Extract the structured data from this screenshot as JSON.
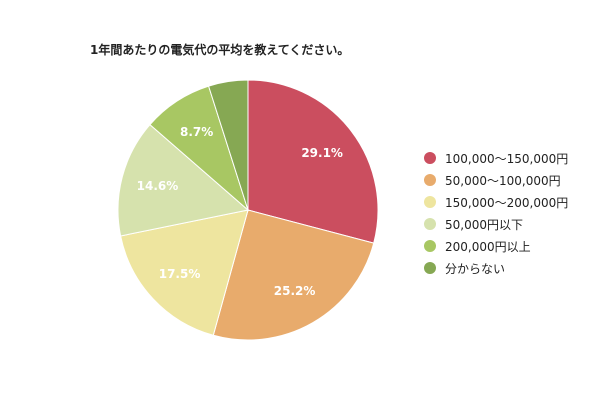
{
  "chart_data": {
    "type": "pie",
    "title": "1年間あたりの電気代の平均を教えてください。",
    "categories": [
      "100,000〜150,000円",
      "50,000〜100,000円",
      "150,000〜200,000円",
      "50,000円以下",
      "200,000円以上",
      "分からない"
    ],
    "values": [
      29.1,
      25.2,
      17.5,
      14.6,
      8.7,
      4.9
    ],
    "labels": [
      "29.1%",
      "25.2%",
      "17.5%",
      "14.6%",
      "8.7%",
      ""
    ],
    "colors": [
      "#cb4e5f",
      "#e8ab6c",
      "#eee59f",
      "#d6e2ad",
      "#a8c763",
      "#86a853"
    ],
    "legend_position": "right"
  }
}
